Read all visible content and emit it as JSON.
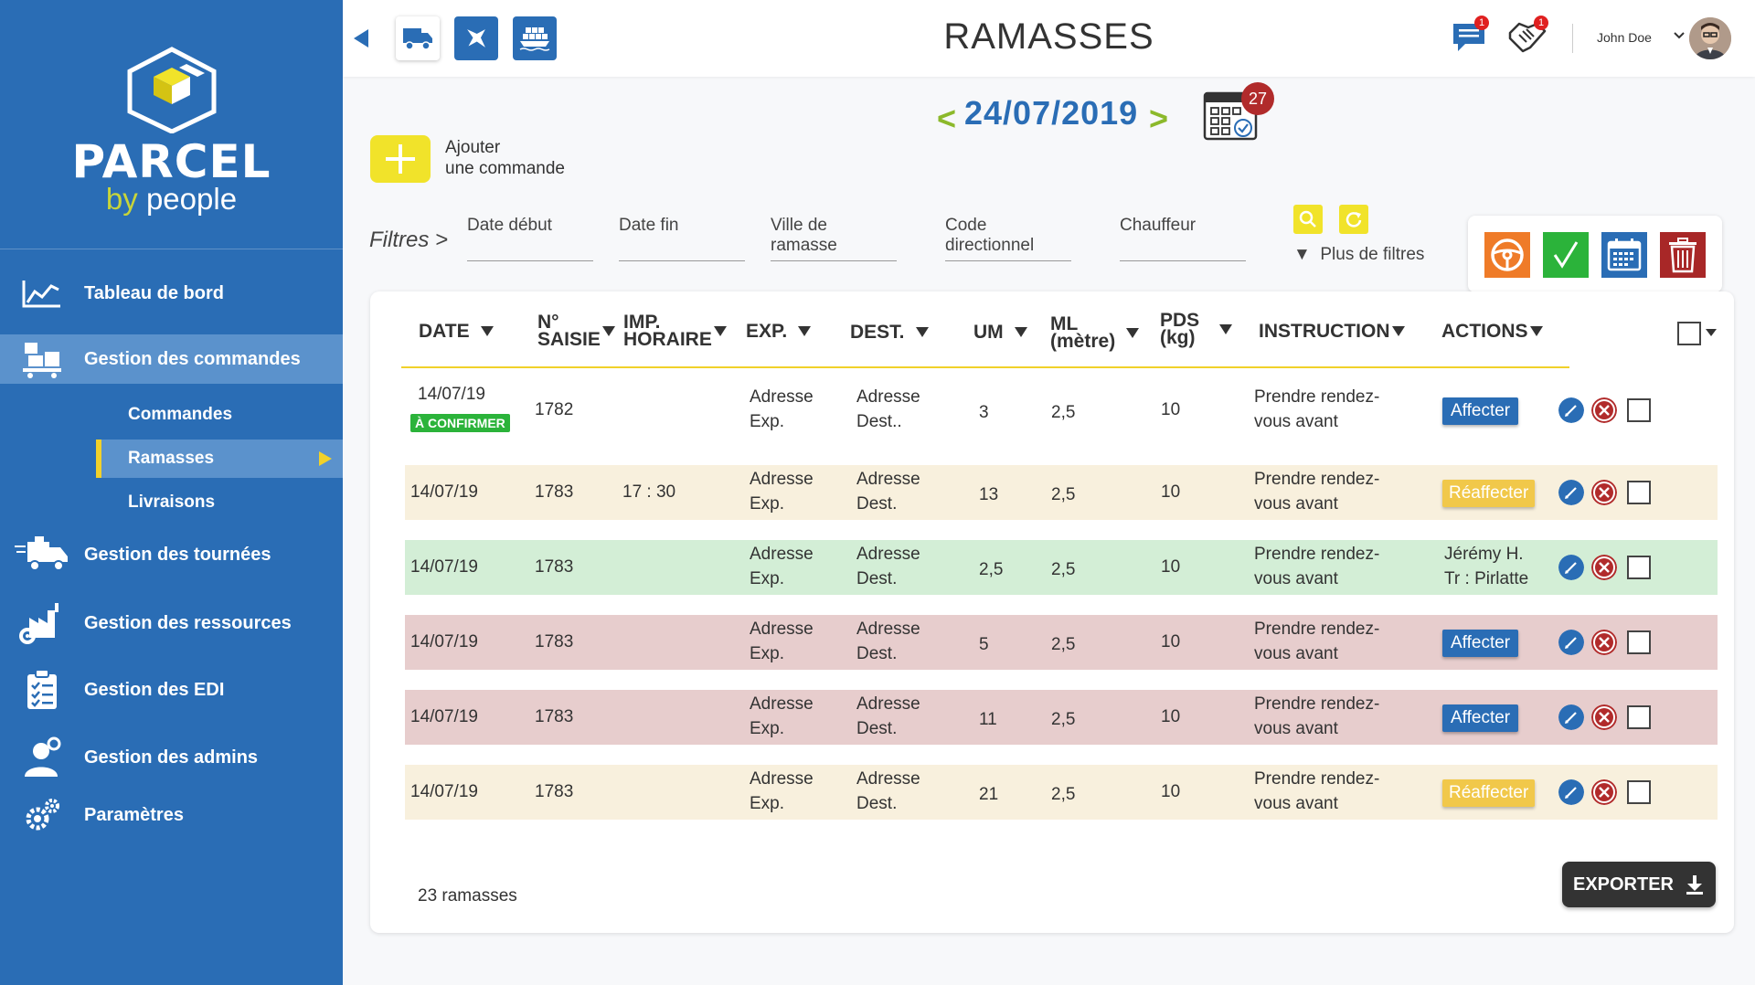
{
  "brand": {
    "name": "PARCEL",
    "sub_by": "by",
    "sub_people": "people"
  },
  "sidebar": {
    "items": [
      {
        "label": "Tableau de bord",
        "icon": "chart-line-icon"
      },
      {
        "label": "Gestion des commandes",
        "icon": "pallet-truck-icon"
      },
      {
        "label": "Gestion des tournées",
        "icon": "delivery-truck-icon"
      },
      {
        "label": "Gestion des ressources",
        "icon": "factory-gear-icon"
      },
      {
        "label": "Gestion des EDI",
        "icon": "clipboard-check-icon"
      },
      {
        "label": "Gestion des admins",
        "icon": "admin-user-icon"
      },
      {
        "label": "Paramètres",
        "icon": "gears-icon"
      }
    ],
    "sub_items": [
      {
        "label": "Commandes"
      },
      {
        "label": "Ramasses"
      },
      {
        "label": "Livraisons"
      }
    ]
  },
  "header": {
    "title": "RAMASSES",
    "modes": [
      "truck-icon",
      "plane-icon",
      "ship-icon"
    ],
    "messages_count": "1",
    "deals_count": "1",
    "user_name": "John Doe"
  },
  "date_nav": {
    "prev": "<",
    "date": "24/07/2019",
    "next": ">",
    "calendar_badge": "27"
  },
  "add_command": {
    "line1": "Ajouter",
    "line2": "une commande"
  },
  "filters": {
    "label": "Filtres >",
    "fields": [
      "Date début",
      "Date fin",
      "Ville de ramasse",
      "Code directionnel",
      "Chauffeur"
    ],
    "more": "Plus de filtres"
  },
  "table": {
    "headers": {
      "date": "DATE",
      "saisie_1": "N°",
      "saisie_2": "SAISIE",
      "imp_1": "IMP.",
      "imp_2": "HORAIRE",
      "exp": "EXP.",
      "dest": "DEST.",
      "um": "UM",
      "ml_1": "ML",
      "ml_2": "(mètre)",
      "pds_1": "PDS",
      "pds_2": "(kg)",
      "instruction": "INSTRUCTION",
      "actions": "ACTIONS"
    },
    "rows": [
      {
        "date": "14/07/19",
        "status": "À CONFIRMER",
        "saisie": "1782",
        "imp": "",
        "exp1": "Adresse",
        "exp2": "Exp.",
        "dest1": "Adresse",
        "dest2": "Dest..",
        "um": "3",
        "ml": "2,5",
        "pds": "10",
        "instr1": "Prendre rendez-",
        "instr2": "vous avant",
        "action_type": "affecter",
        "action": "Affecter",
        "bg": "#ffffff"
      },
      {
        "date": "14/07/19",
        "status": "",
        "saisie": "1783",
        "imp": "17 : 30",
        "exp1": "Adresse",
        "exp2": "Exp.",
        "dest1": "Adresse",
        "dest2": "Dest.",
        "um": "13",
        "ml": "2,5",
        "pds": "10",
        "instr1": "Prendre rendez-",
        "instr2": "vous avant",
        "action_type": "reaffecter",
        "action": "Réaffecter",
        "bg": "#f8f0dd"
      },
      {
        "date": "14/07/19",
        "status": "",
        "saisie": "1783",
        "imp": "",
        "exp1": "Adresse",
        "exp2": "Exp.",
        "dest1": "Adresse",
        "dest2": "Dest.",
        "um": "2,5",
        "ml": "2,5",
        "pds": "10",
        "instr1": "Prendre rendez-",
        "instr2": "vous avant",
        "action_type": "text",
        "action": "Jérémy H.",
        "action2": "Tr : Pirlatte",
        "bg": "#d3eed6"
      },
      {
        "date": "14/07/19",
        "status": "",
        "saisie": "1783",
        "imp": "",
        "exp1": "Adresse",
        "exp2": "Exp.",
        "dest1": "Adresse",
        "dest2": "Dest.",
        "um": "5",
        "ml": "2,5",
        "pds": "10",
        "instr1": "Prendre rendez-",
        "instr2": "vous avant",
        "action_type": "affecter",
        "action": "Affecter",
        "bg": "#e7cdcd"
      },
      {
        "date": "14/07/19",
        "status": "",
        "saisie": "1783",
        "imp": "",
        "exp1": "Adresse",
        "exp2": "Exp.",
        "dest1": "Adresse",
        "dest2": "Dest.",
        "um": "11",
        "ml": "2,5",
        "pds": "10",
        "instr1": "Prendre rendez-",
        "instr2": "vous avant",
        "action_type": "affecter",
        "action": "Affecter",
        "bg": "#e7cdcd"
      },
      {
        "date": "14/07/19",
        "status": "",
        "saisie": "1783",
        "imp": "",
        "exp1": "Adresse",
        "exp2": "Exp.",
        "dest1": "Adresse",
        "dest2": "Dest.",
        "um": "21",
        "ml": "2,5",
        "pds": "10",
        "instr1": "Prendre rendez-",
        "instr2": "vous avant",
        "action_type": "reaffecter",
        "action": "Réaffecter",
        "bg": "#f8f0dd"
      }
    ],
    "count": "23 ramasses",
    "export": "EXPORTER"
  },
  "colors": {
    "primary": "#2a6db5",
    "accent": "#f1e32a",
    "green": "#2bb33a",
    "danger": "#b12b2b"
  }
}
